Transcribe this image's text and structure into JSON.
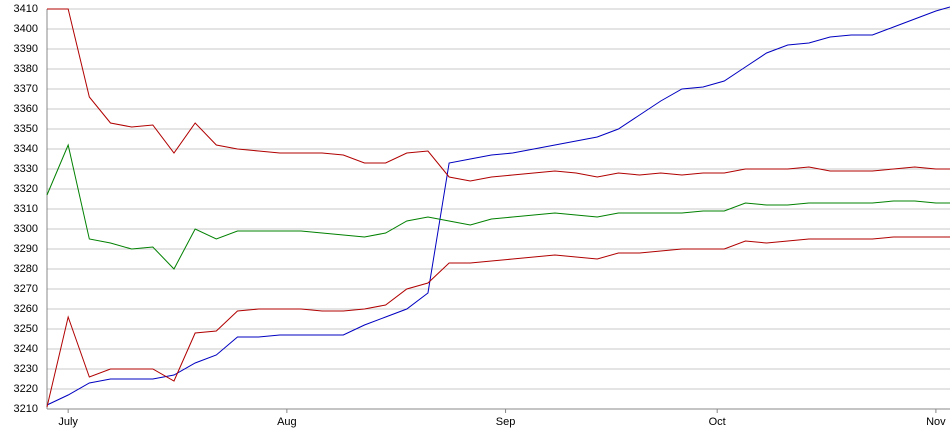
{
  "chart_data": {
    "type": "line",
    "x": [
      -3,
      0,
      3,
      6,
      9,
      12,
      15,
      18,
      21,
      24,
      27,
      30,
      33,
      36,
      39,
      42,
      45,
      48,
      51,
      54,
      57,
      60,
      63,
      66,
      69,
      72,
      75,
      78,
      81,
      84,
      87,
      90,
      93,
      96,
      99,
      102,
      105,
      108,
      111,
      114,
      117,
      120,
      123,
      125
    ],
    "series": [
      {
        "color": "#0000c0",
        "values": [
          3212,
          3217,
          3223,
          3225,
          3225,
          3225,
          3227,
          3233,
          3237,
          3246,
          3246,
          3247,
          3247,
          3247,
          3247,
          3252,
          3256,
          3260,
          3268,
          3333,
          3335,
          3337,
          3338,
          3340,
          3342,
          3344,
          3346,
          3350,
          3357,
          3364,
          3370,
          3371,
          3374,
          3381,
          3388,
          3392,
          3393,
          3396,
          3397,
          3397,
          3401,
          3405,
          3409,
          3411
        ]
      },
      {
        "color": "#b00000",
        "values": [
          3410,
          3410,
          3366,
          3353,
          3351,
          3352,
          3338,
          3353,
          3342,
          3340,
          3339,
          3338,
          3338,
          3338,
          3337,
          3333,
          3333,
          3338,
          3339,
          3326,
          3324,
          3326,
          3327,
          3328,
          3329,
          3328,
          3326,
          3328,
          3327,
          3328,
          3327,
          3328,
          3328,
          3330,
          3330,
          3330,
          3331,
          3329,
          3329,
          3329,
          3330,
          3331,
          3330,
          3330
        ]
      },
      {
        "color": "#008000",
        "values": [
          3317,
          3342,
          3295,
          3293,
          3290,
          3291,
          3280,
          3300,
          3295,
          3299,
          3299,
          3299,
          3299,
          3298,
          3297,
          3296,
          3298,
          3304,
          3306,
          3304,
          3302,
          3305,
          3306,
          3307,
          3308,
          3307,
          3306,
          3308,
          3308,
          3308,
          3308,
          3309,
          3309,
          3313,
          3312,
          3312,
          3313,
          3313,
          3313,
          3313,
          3314,
          3314,
          3313,
          3313
        ]
      },
      {
        "color": "#b00000",
        "values": [
          3211,
          3256,
          3226,
          3230,
          3230,
          3230,
          3224,
          3248,
          3249,
          3259,
          3260,
          3260,
          3260,
          3259,
          3259,
          3260,
          3262,
          3270,
          3273,
          3283,
          3283,
          3284,
          3285,
          3286,
          3287,
          3286,
          3285,
          3288,
          3288,
          3289,
          3290,
          3290,
          3290,
          3294,
          3293,
          3294,
          3295,
          3295,
          3295,
          3295,
          3296,
          3296,
          3296,
          3296
        ]
      }
    ],
    "xlim": [
      -3,
      125
    ],
    "xticks": [
      {
        "value": 0,
        "label": "July"
      },
      {
        "value": 31,
        "label": "Aug"
      },
      {
        "value": 62,
        "label": "Sep"
      },
      {
        "value": 92,
        "label": "Oct"
      },
      {
        "value": 123,
        "label": "Nov"
      }
    ],
    "ylim": [
      3210,
      3410
    ],
    "yticks": [
      3210,
      3220,
      3230,
      3240,
      3250,
      3260,
      3270,
      3280,
      3290,
      3300,
      3310,
      3320,
      3330,
      3340,
      3350,
      3360,
      3370,
      3380,
      3390,
      3400,
      3410
    ],
    "grid": true
  }
}
